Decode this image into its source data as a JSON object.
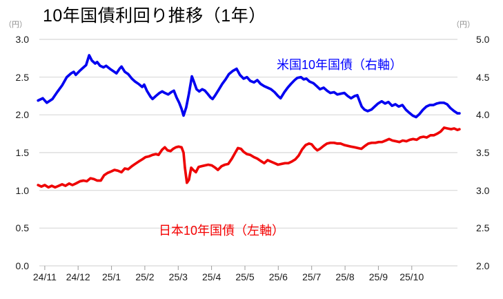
{
  "header": {
    "title": "10年国債利回り推移（1年）"
  },
  "chart_data": {
    "type": "line",
    "title": "10年国債利回り推移（1年）",
    "grid": true,
    "grid_color": "#d8d8d8",
    "tick_mark_color": "#9a9a9a",
    "legend_position": "inline-annotations",
    "x_ticks": [
      "24/11",
      "24/12",
      "25/1",
      "25/2",
      "25/3",
      "25/4",
      "25/5",
      "25/6",
      "25/7",
      "25/8",
      "25/9",
      "25/10"
    ],
    "x_range_months": [
      -0.163,
      12.37
    ],
    "left_axis": {
      "unit": "（円）",
      "ticks": [
        "3.0",
        "2.5",
        "2.0",
        "1.5",
        "1.0",
        "0.5",
        "0.0"
      ],
      "range": [
        0,
        3
      ]
    },
    "right_axis": {
      "unit": "（円）",
      "ticks": [
        "5.0",
        "4.5",
        "4.0",
        "3.5",
        "3.0",
        "2.5",
        "2.0"
      ],
      "range": [
        2,
        5
      ]
    },
    "series": [
      {
        "name": "米国10年国債（右軸）",
        "axis": "right",
        "color": "#0202f0",
        "label_color": "#0000ff",
        "points": [
          [
            -0.2,
            4.19
          ],
          [
            -0.06,
            4.22
          ],
          [
            0.06,
            4.16
          ],
          [
            0.23,
            4.21
          ],
          [
            0.37,
            4.3
          ],
          [
            0.52,
            4.39
          ],
          [
            0.66,
            4.5
          ],
          [
            0.79,
            4.55
          ],
          [
            0.87,
            4.57
          ],
          [
            0.93,
            4.53
          ],
          [
            1.04,
            4.58
          ],
          [
            1.14,
            4.62
          ],
          [
            1.24,
            4.66
          ],
          [
            1.33,
            4.79
          ],
          [
            1.41,
            4.72
          ],
          [
            1.51,
            4.68
          ],
          [
            1.57,
            4.7
          ],
          [
            1.66,
            4.65
          ],
          [
            1.76,
            4.63
          ],
          [
            1.84,
            4.65
          ],
          [
            1.95,
            4.61
          ],
          [
            2.05,
            4.58
          ],
          [
            2.15,
            4.55
          ],
          [
            2.24,
            4.61
          ],
          [
            2.3,
            4.64
          ],
          [
            2.4,
            4.57
          ],
          [
            2.5,
            4.54
          ],
          [
            2.61,
            4.48
          ],
          [
            2.71,
            4.44
          ],
          [
            2.81,
            4.41
          ],
          [
            2.92,
            4.37
          ],
          [
            2.98,
            4.4
          ],
          [
            3.06,
            4.32
          ],
          [
            3.17,
            4.24
          ],
          [
            3.23,
            4.21
          ],
          [
            3.33,
            4.25
          ],
          [
            3.44,
            4.29
          ],
          [
            3.52,
            4.31
          ],
          [
            3.6,
            4.29
          ],
          [
            3.7,
            4.27
          ],
          [
            3.79,
            4.3
          ],
          [
            3.87,
            4.32
          ],
          [
            3.95,
            4.23
          ],
          [
            4.03,
            4.16
          ],
          [
            4.1,
            4.08
          ],
          [
            4.16,
            3.99
          ],
          [
            4.24,
            4.1
          ],
          [
            4.32,
            4.28
          ],
          [
            4.41,
            4.51
          ],
          [
            4.47,
            4.44
          ],
          [
            4.55,
            4.34
          ],
          [
            4.63,
            4.31
          ],
          [
            4.72,
            4.34
          ],
          [
            4.8,
            4.32
          ],
          [
            4.88,
            4.28
          ],
          [
            4.97,
            4.23
          ],
          [
            5.03,
            4.21
          ],
          [
            5.11,
            4.26
          ],
          [
            5.21,
            4.33
          ],
          [
            5.32,
            4.41
          ],
          [
            5.42,
            4.47
          ],
          [
            5.52,
            4.54
          ],
          [
            5.63,
            4.58
          ],
          [
            5.75,
            4.61
          ],
          [
            5.85,
            4.53
          ],
          [
            5.96,
            4.48
          ],
          [
            6.06,
            4.5
          ],
          [
            6.16,
            4.45
          ],
          [
            6.27,
            4.43
          ],
          [
            6.37,
            4.46
          ],
          [
            6.47,
            4.41
          ],
          [
            6.58,
            4.38
          ],
          [
            6.68,
            4.36
          ],
          [
            6.78,
            4.34
          ],
          [
            6.89,
            4.3
          ],
          [
            6.99,
            4.25
          ],
          [
            7.07,
            4.22
          ],
          [
            7.18,
            4.3
          ],
          [
            7.28,
            4.36
          ],
          [
            7.38,
            4.41
          ],
          [
            7.49,
            4.46
          ],
          [
            7.57,
            4.49
          ],
          [
            7.68,
            4.5
          ],
          [
            7.76,
            4.47
          ],
          [
            7.84,
            4.48
          ],
          [
            7.94,
            4.44
          ],
          [
            8.05,
            4.42
          ],
          [
            8.15,
            4.38
          ],
          [
            8.25,
            4.34
          ],
          [
            8.36,
            4.36
          ],
          [
            8.46,
            4.32
          ],
          [
            8.56,
            4.29
          ],
          [
            8.67,
            4.3
          ],
          [
            8.77,
            4.27
          ],
          [
            8.87,
            4.28
          ],
          [
            8.98,
            4.29
          ],
          [
            9.08,
            4.25
          ],
          [
            9.18,
            4.22
          ],
          [
            9.29,
            4.25
          ],
          [
            9.37,
            4.26
          ],
          [
            9.43,
            4.19
          ],
          [
            9.5,
            4.11
          ],
          [
            9.58,
            4.07
          ],
          [
            9.68,
            4.05
          ],
          [
            9.79,
            4.07
          ],
          [
            9.89,
            4.11
          ],
          [
            9.99,
            4.15
          ],
          [
            10.1,
            4.18
          ],
          [
            10.2,
            4.15
          ],
          [
            10.3,
            4.17
          ],
          [
            10.41,
            4.12
          ],
          [
            10.51,
            4.14
          ],
          [
            10.61,
            4.11
          ],
          [
            10.72,
            4.13
          ],
          [
            10.82,
            4.07
          ],
          [
            10.92,
            4.03
          ],
          [
            11.03,
            3.99
          ],
          [
            11.13,
            3.97
          ],
          [
            11.23,
            4.01
          ],
          [
            11.34,
            4.07
          ],
          [
            11.44,
            4.11
          ],
          [
            11.54,
            4.13
          ],
          [
            11.65,
            4.13
          ],
          [
            11.75,
            4.15
          ],
          [
            11.85,
            4.16
          ],
          [
            11.96,
            4.16
          ],
          [
            12.06,
            4.14
          ],
          [
            12.16,
            4.09
          ],
          [
            12.27,
            4.05
          ],
          [
            12.37,
            4.02
          ],
          [
            12.43,
            4.02
          ]
        ]
      },
      {
        "name": "日本10年国債（左軸）",
        "axis": "left",
        "color": "#ee0404",
        "label_color": "#f40000",
        "points": [
          [
            -0.2,
            1.07
          ],
          [
            -0.1,
            1.05
          ],
          [
            0.0,
            1.07
          ],
          [
            0.11,
            1.04
          ],
          [
            0.21,
            1.06
          ],
          [
            0.31,
            1.04
          ],
          [
            0.42,
            1.06
          ],
          [
            0.52,
            1.08
          ],
          [
            0.62,
            1.06
          ],
          [
            0.73,
            1.09
          ],
          [
            0.83,
            1.07
          ],
          [
            0.93,
            1.09
          ],
          [
            1.06,
            1.12
          ],
          [
            1.16,
            1.13
          ],
          [
            1.26,
            1.12
          ],
          [
            1.37,
            1.16
          ],
          [
            1.47,
            1.15
          ],
          [
            1.57,
            1.13
          ],
          [
            1.68,
            1.13
          ],
          [
            1.78,
            1.2
          ],
          [
            1.88,
            1.23
          ],
          [
            1.99,
            1.25
          ],
          [
            2.09,
            1.27
          ],
          [
            2.19,
            1.26
          ],
          [
            2.3,
            1.24
          ],
          [
            2.4,
            1.29
          ],
          [
            2.5,
            1.28
          ],
          [
            2.61,
            1.32
          ],
          [
            2.71,
            1.35
          ],
          [
            2.81,
            1.38
          ],
          [
            2.92,
            1.41
          ],
          [
            3.02,
            1.44
          ],
          [
            3.12,
            1.45
          ],
          [
            3.23,
            1.47
          ],
          [
            3.33,
            1.48
          ],
          [
            3.41,
            1.47
          ],
          [
            3.52,
            1.54
          ],
          [
            3.6,
            1.57
          ],
          [
            3.68,
            1.53
          ],
          [
            3.77,
            1.52
          ],
          [
            3.85,
            1.55
          ],
          [
            3.93,
            1.57
          ],
          [
            4.01,
            1.58
          ],
          [
            4.1,
            1.57
          ],
          [
            4.16,
            1.5
          ],
          [
            4.2,
            1.3
          ],
          [
            4.26,
            1.1
          ],
          [
            4.32,
            1.14
          ],
          [
            4.39,
            1.3
          ],
          [
            4.45,
            1.27
          ],
          [
            4.53,
            1.24
          ],
          [
            4.61,
            1.31
          ],
          [
            4.7,
            1.32
          ],
          [
            4.8,
            1.33
          ],
          [
            4.9,
            1.34
          ],
          [
            5.01,
            1.33
          ],
          [
            5.11,
            1.3
          ],
          [
            5.19,
            1.27
          ],
          [
            5.3,
            1.32
          ],
          [
            5.4,
            1.34
          ],
          [
            5.5,
            1.35
          ],
          [
            5.61,
            1.42
          ],
          [
            5.71,
            1.5
          ],
          [
            5.79,
            1.56
          ],
          [
            5.88,
            1.55
          ],
          [
            5.96,
            1.51
          ],
          [
            6.06,
            1.48
          ],
          [
            6.16,
            1.47
          ],
          [
            6.27,
            1.44
          ],
          [
            6.37,
            1.42
          ],
          [
            6.47,
            1.39
          ],
          [
            6.58,
            1.36
          ],
          [
            6.68,
            1.4
          ],
          [
            6.78,
            1.38
          ],
          [
            6.89,
            1.36
          ],
          [
            6.99,
            1.34
          ],
          [
            7.09,
            1.35
          ],
          [
            7.2,
            1.36
          ],
          [
            7.3,
            1.36
          ],
          [
            7.4,
            1.38
          ],
          [
            7.51,
            1.41
          ],
          [
            7.61,
            1.46
          ],
          [
            7.71,
            1.54
          ],
          [
            7.82,
            1.6
          ],
          [
            7.92,
            1.62
          ],
          [
            8.0,
            1.61
          ],
          [
            8.09,
            1.56
          ],
          [
            8.17,
            1.53
          ],
          [
            8.25,
            1.55
          ],
          [
            8.36,
            1.59
          ],
          [
            8.46,
            1.62
          ],
          [
            8.56,
            1.63
          ],
          [
            8.67,
            1.63
          ],
          [
            8.77,
            1.62
          ],
          [
            8.87,
            1.62
          ],
          [
            8.98,
            1.6
          ],
          [
            9.08,
            1.59
          ],
          [
            9.18,
            1.58
          ],
          [
            9.29,
            1.57
          ],
          [
            9.39,
            1.56
          ],
          [
            9.49,
            1.55
          ],
          [
            9.6,
            1.59
          ],
          [
            9.7,
            1.62
          ],
          [
            9.8,
            1.63
          ],
          [
            9.91,
            1.63
          ],
          [
            10.01,
            1.64
          ],
          [
            10.11,
            1.64
          ],
          [
            10.22,
            1.66
          ],
          [
            10.32,
            1.68
          ],
          [
            10.42,
            1.66
          ],
          [
            10.53,
            1.65
          ],
          [
            10.63,
            1.64
          ],
          [
            10.73,
            1.66
          ],
          [
            10.84,
            1.65
          ],
          [
            10.94,
            1.67
          ],
          [
            11.04,
            1.68
          ],
          [
            11.15,
            1.67
          ],
          [
            11.25,
            1.7
          ],
          [
            11.35,
            1.71
          ],
          [
            11.45,
            1.7
          ],
          [
            11.56,
            1.73
          ],
          [
            11.66,
            1.73
          ],
          [
            11.76,
            1.75
          ],
          [
            11.87,
            1.78
          ],
          [
            11.97,
            1.83
          ],
          [
            12.07,
            1.82
          ],
          [
            12.18,
            1.81
          ],
          [
            12.27,
            1.82
          ],
          [
            12.37,
            1.8
          ],
          [
            12.43,
            1.81
          ]
        ]
      }
    ]
  }
}
